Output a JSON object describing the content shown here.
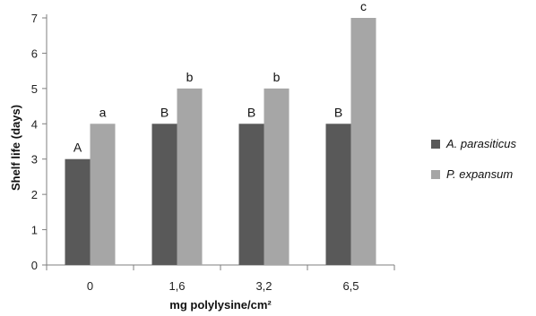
{
  "chart_data": {
    "type": "bar",
    "xlabel": "mg polylysine/cm²",
    "ylabel": "Shelf life (days)",
    "categories": [
      "0",
      "1,6",
      "3,2",
      "6,5"
    ],
    "ylim": [
      0,
      7
    ],
    "yticks": [
      "0",
      "1",
      "2",
      "3",
      "4",
      "5",
      "6",
      "7"
    ],
    "grid": false,
    "legend_position": "right",
    "series": [
      {
        "name": "A. parasiticus",
        "color": "#595959",
        "values": [
          3,
          4,
          4,
          4
        ],
        "annotations": [
          "A",
          "B",
          "B",
          "B"
        ]
      },
      {
        "name": "P. expansum",
        "color": "#a6a6a6",
        "values": [
          4,
          5,
          5,
          7
        ],
        "annotations": [
          "a",
          "b",
          "b",
          "c"
        ]
      }
    ]
  }
}
